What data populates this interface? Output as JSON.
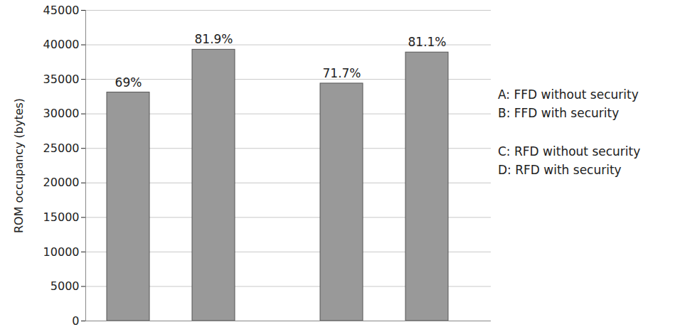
{
  "chart_data": {
    "type": "bar",
    "categories": [
      "A",
      "B",
      "C",
      "D"
    ],
    "values": [
      33100,
      39300,
      34400,
      38900
    ],
    "color": "#999999",
    "annotations": [
      "69%",
      "81.9%",
      "71.7%",
      "81.1%"
    ],
    "legend_entries": [
      "A: FFD without security",
      "B: FFD with security",
      "C: RFD without security",
      "D: RFD with security"
    ],
    "y_label": "ROM occupancy (bytes)",
    "ylim": [
      0,
      45000
    ],
    "yticks": [
      0,
      5000,
      10000,
      15000,
      20000,
      25000,
      30000,
      35000,
      40000,
      45000
    ],
    "grid": true,
    "tick_labels": "y"
  }
}
